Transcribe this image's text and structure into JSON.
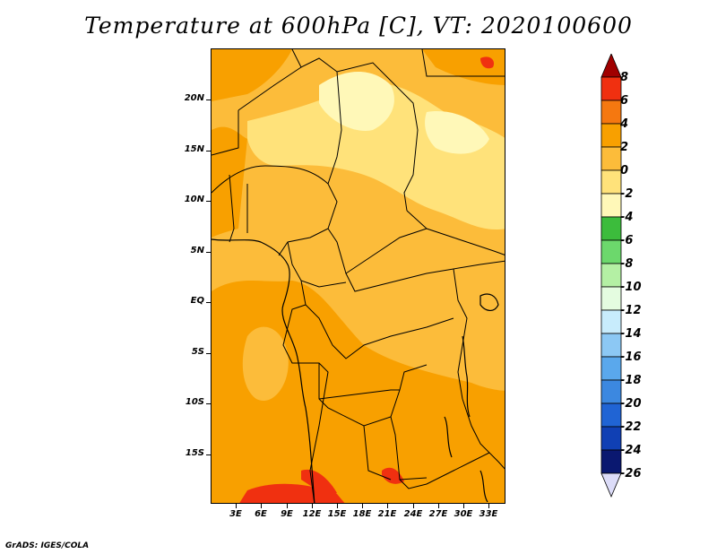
{
  "title": "Temperature at 600hPa [C], VT: 2020100600",
  "credit": "GrADS: IGES/COLA",
  "lat_labels": [
    "20N",
    "15N",
    "10N",
    "5N",
    "EQ",
    "5S",
    "10S",
    "15S"
  ],
  "lon_labels": [
    "3E",
    "6E",
    "9E",
    "12E",
    "15E",
    "18E",
    "21E",
    "24E",
    "27E",
    "30E",
    "33E"
  ],
  "colorbar": {
    "labels": [
      "8",
      "6",
      "4",
      "2",
      "0",
      "-2",
      "-4",
      "-6",
      "-8",
      "-10",
      "-12",
      "-14",
      "-16",
      "-18",
      "-20",
      "-22",
      "-24",
      "-26"
    ],
    "colors": [
      "#a00000",
      "#f03010",
      "#f57810",
      "#f8a000",
      "#fcbc3a",
      "#ffe27a",
      "#fff8b8",
      "#3cbc3c",
      "#6cd86c",
      "#b4f0a4",
      "#e4fce0",
      "#c8ecfc",
      "#8cc8f4",
      "#5aa8ec",
      "#3c88e0",
      "#2064d4",
      "#1040b4",
      "#0a1870",
      "#dcdcf8"
    ]
  }
}
